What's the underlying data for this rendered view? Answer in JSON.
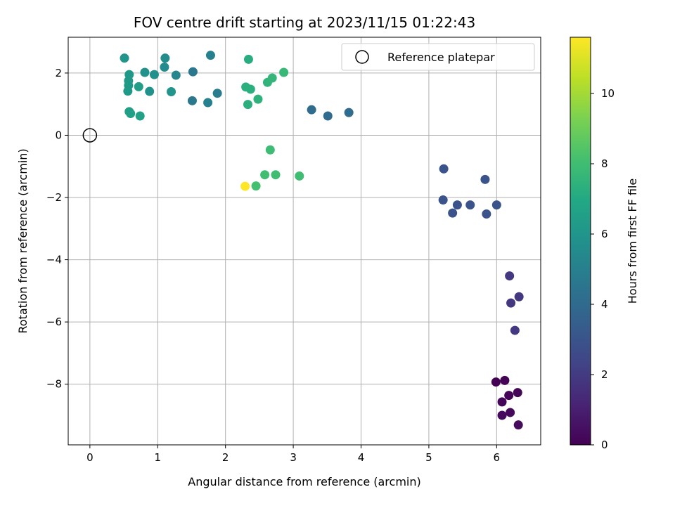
{
  "chart_data": {
    "type": "scatter",
    "title": "FOV centre drift starting at 2023/11/15 01:22:43",
    "xlabel": "Angular distance from reference (arcmin)",
    "ylabel": "Rotation from reference (arcmin)",
    "xlim": [
      -0.32,
      6.65
    ],
    "ylim": [
      -9.95,
      3.15
    ],
    "xticks": [
      0,
      1,
      2,
      3,
      4,
      5,
      6
    ],
    "yticks": [
      -8,
      -6,
      -4,
      -2,
      0,
      2
    ],
    "grid": true,
    "legend": {
      "position": "top-right",
      "entries": [
        "Reference platepar"
      ]
    },
    "reference_point": {
      "x": 0,
      "y": 0,
      "label": "Reference platepar"
    },
    "colorbar": {
      "label": "Hours from first FF file",
      "range": [
        0,
        11.6
      ],
      "ticks": [
        0,
        2,
        4,
        6,
        8,
        10
      ],
      "colormap": "viridis"
    },
    "points": [
      {
        "x": 5.99,
        "y": -7.93,
        "h": 0.0
      },
      {
        "x": 6.12,
        "y": -7.88,
        "h": 0.05
      },
      {
        "x": 6.18,
        "y": -8.36,
        "h": 0.1
      },
      {
        "x": 6.31,
        "y": -8.27,
        "h": 0.15
      },
      {
        "x": 6.08,
        "y": -8.57,
        "h": 0.2
      },
      {
        "x": 6.2,
        "y": -8.91,
        "h": 0.25
      },
      {
        "x": 6.08,
        "y": -9.0,
        "h": 0.3
      },
      {
        "x": 6.32,
        "y": -9.31,
        "h": 0.35
      },
      {
        "x": 6.19,
        "y": -4.52,
        "h": 1.9
      },
      {
        "x": 6.33,
        "y": -5.19,
        "h": 1.9
      },
      {
        "x": 6.21,
        "y": -5.39,
        "h": 1.9
      },
      {
        "x": 6.27,
        "y": -6.27,
        "h": 1.9
      },
      {
        "x": 5.22,
        "y": -1.08,
        "h": 3.0
      },
      {
        "x": 5.83,
        "y": -1.42,
        "h": 3.0
      },
      {
        "x": 5.21,
        "y": -2.08,
        "h": 3.0
      },
      {
        "x": 5.42,
        "y": -2.24,
        "h": 3.0
      },
      {
        "x": 5.61,
        "y": -2.24,
        "h": 3.0
      },
      {
        "x": 6.0,
        "y": -2.24,
        "h": 3.0
      },
      {
        "x": 5.35,
        "y": -2.5,
        "h": 3.0
      },
      {
        "x": 5.85,
        "y": -2.53,
        "h": 3.0
      },
      {
        "x": 3.27,
        "y": 0.82,
        "h": 4.1
      },
      {
        "x": 3.51,
        "y": 0.62,
        "h": 4.1
      },
      {
        "x": 3.82,
        "y": 0.73,
        "h": 4.1
      },
      {
        "x": 1.52,
        "y": 2.04,
        "h": 4.6
      },
      {
        "x": 1.51,
        "y": 1.11,
        "h": 4.6
      },
      {
        "x": 1.88,
        "y": 1.35,
        "h": 4.8
      },
      {
        "x": 1.74,
        "y": 1.05,
        "h": 5.0
      },
      {
        "x": 1.78,
        "y": 2.57,
        "h": 5.0
      },
      {
        "x": 1.27,
        "y": 1.93,
        "h": 5.3
      },
      {
        "x": 1.1,
        "y": 2.19,
        "h": 5.5
      },
      {
        "x": 1.11,
        "y": 2.48,
        "h": 5.6
      },
      {
        "x": 0.95,
        "y": 1.95,
        "h": 5.8
      },
      {
        "x": 0.81,
        "y": 2.02,
        "h": 5.8
      },
      {
        "x": 0.88,
        "y": 1.41,
        "h": 5.8
      },
      {
        "x": 1.2,
        "y": 1.4,
        "h": 6.0
      },
      {
        "x": 0.51,
        "y": 2.48,
        "h": 6.0
      },
      {
        "x": 0.58,
        "y": 1.95,
        "h": 6.2
      },
      {
        "x": 0.57,
        "y": 1.75,
        "h": 6.2
      },
      {
        "x": 0.57,
        "y": 1.6,
        "h": 6.2
      },
      {
        "x": 0.56,
        "y": 1.42,
        "h": 6.2
      },
      {
        "x": 0.72,
        "y": 1.56,
        "h": 6.4
      },
      {
        "x": 0.58,
        "y": 0.76,
        "h": 6.5
      },
      {
        "x": 0.6,
        "y": 0.7,
        "h": 6.5
      },
      {
        "x": 0.74,
        "y": 0.62,
        "h": 6.6
      },
      {
        "x": 2.34,
        "y": 2.44,
        "h": 7.2
      },
      {
        "x": 2.3,
        "y": 1.55,
        "h": 7.3
      },
      {
        "x": 2.37,
        "y": 1.48,
        "h": 7.3
      },
      {
        "x": 2.33,
        "y": 0.99,
        "h": 7.3
      },
      {
        "x": 2.48,
        "y": 1.16,
        "h": 7.4
      },
      {
        "x": 2.62,
        "y": 1.7,
        "h": 7.5
      },
      {
        "x": 2.69,
        "y": 1.84,
        "h": 7.6
      },
      {
        "x": 2.86,
        "y": 2.02,
        "h": 7.7
      },
      {
        "x": 2.66,
        "y": -0.47,
        "h": 7.9
      },
      {
        "x": 2.58,
        "y": -1.27,
        "h": 8.0
      },
      {
        "x": 2.74,
        "y": -1.27,
        "h": 8.0
      },
      {
        "x": 3.09,
        "y": -1.31,
        "h": 8.0
      },
      {
        "x": 2.45,
        "y": -1.63,
        "h": 8.1
      },
      {
        "x": 2.29,
        "y": -1.64,
        "h": 11.6
      }
    ]
  }
}
